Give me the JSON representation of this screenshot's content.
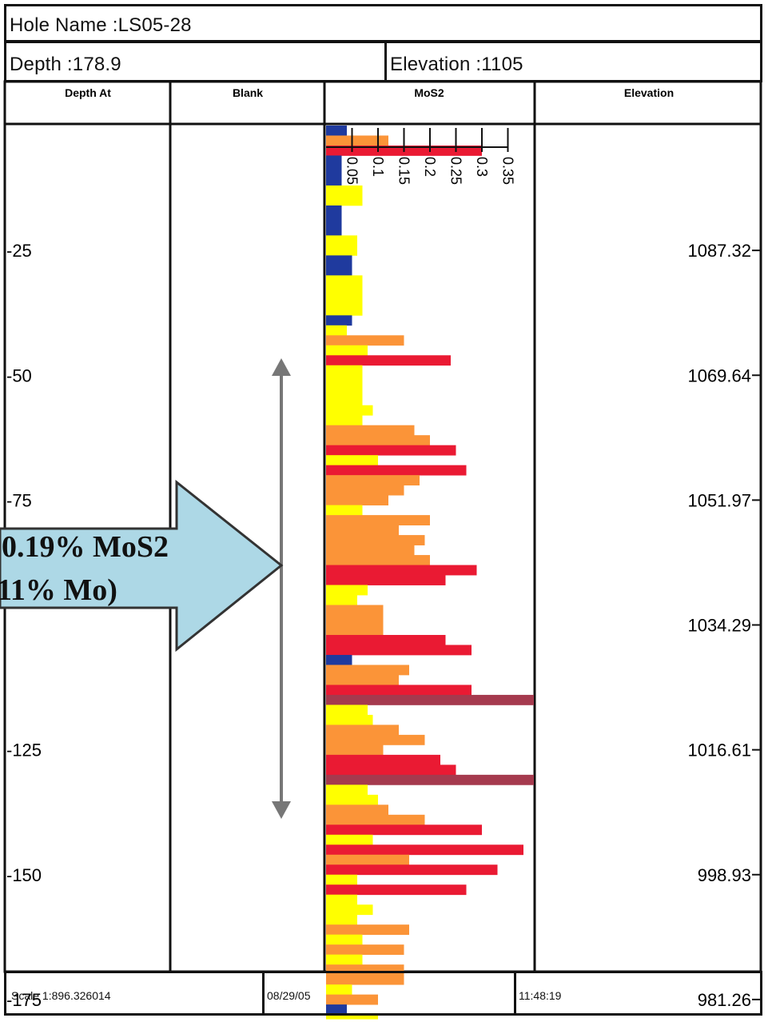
{
  "hole_name": "Hole Name :LS05-28",
  "depth": "Depth :178.9",
  "elevation": "Elevation :1105",
  "columns": [
    "Depth At",
    "Blank",
    "MoS2",
    "Elevation"
  ],
  "footer": {
    "scale": "Scale 1:896.326014",
    "date": "08/29/05",
    "time": "11:48:19"
  },
  "callout": {
    "line1": "0.19% MoS2",
    "line2": "11% Mo)"
  },
  "colors": {
    "blue": "#1f3a9e",
    "yellow": "#ffff00",
    "orange": "#fb9438",
    "red": "#ea1a33",
    "maroon": "#a53a4e",
    "callout_fill": "#add8e6",
    "arrow_grey": "#777777"
  },
  "chart_data": {
    "type": "bar",
    "orientation": "horizontal",
    "title": "MoS2",
    "ylabel": "Depth At",
    "ylim": [
      0,
      178.9
    ],
    "xlim": [
      0,
      0.4
    ],
    "x_ticks": [
      "0.05",
      "0.1",
      "0.15",
      "0.2",
      "0.25",
      "0.3",
      "0.35"
    ],
    "x_tick_values": [
      0.05,
      0.1,
      0.15,
      0.2,
      0.25,
      0.3,
      0.35
    ],
    "depth_ticks": [
      "-25",
      "-50",
      "-75",
      "-125",
      "-150",
      "-175"
    ],
    "depth_tick_values": [
      25,
      50,
      75,
      125,
      150,
      175
    ],
    "elevation_ticks": [
      "1087.32",
      "1069.64",
      "1051.97",
      "1034.29",
      "1016.61",
      "998.93",
      "981.26"
    ],
    "elevation_tick_depths": [
      25,
      50,
      75,
      100,
      125,
      150,
      175
    ],
    "intervals": [
      {
        "from": 0,
        "to": 2,
        "value": 0.04,
        "class": "blue"
      },
      {
        "from": 2,
        "to": 4,
        "value": 0.12,
        "class": "orange"
      },
      {
        "from": 4,
        "to": 6,
        "value": 0.3,
        "class": "red"
      },
      {
        "from": 6,
        "to": 12,
        "value": 0.03,
        "class": "blue"
      },
      {
        "from": 12,
        "to": 16,
        "value": 0.07,
        "class": "yellow"
      },
      {
        "from": 16,
        "to": 22,
        "value": 0.03,
        "class": "blue"
      },
      {
        "from": 22,
        "to": 26,
        "value": 0.06,
        "class": "yellow"
      },
      {
        "from": 26,
        "to": 30,
        "value": 0.05,
        "class": "blue"
      },
      {
        "from": 30,
        "to": 38,
        "value": 0.07,
        "class": "yellow"
      },
      {
        "from": 38,
        "to": 40,
        "value": 0.05,
        "class": "blue"
      },
      {
        "from": 40,
        "to": 42,
        "value": 0.04,
        "class": "yellow"
      },
      {
        "from": 42,
        "to": 44,
        "value": 0.15,
        "class": "orange"
      },
      {
        "from": 44,
        "to": 46,
        "value": 0.08,
        "class": "yellow"
      },
      {
        "from": 46,
        "to": 48,
        "value": 0.24,
        "class": "red"
      },
      {
        "from": 48,
        "to": 56,
        "value": 0.07,
        "class": "yellow"
      },
      {
        "from": 56,
        "to": 58,
        "value": 0.09,
        "class": "yellow"
      },
      {
        "from": 58,
        "to": 60,
        "value": 0.07,
        "class": "yellow"
      },
      {
        "from": 60,
        "to": 62,
        "value": 0.17,
        "class": "orange"
      },
      {
        "from": 62,
        "to": 64,
        "value": 0.2,
        "class": "orange"
      },
      {
        "from": 64,
        "to": 66,
        "value": 0.25,
        "class": "red"
      },
      {
        "from": 66,
        "to": 68,
        "value": 0.1,
        "class": "yellow"
      },
      {
        "from": 68,
        "to": 70,
        "value": 0.27,
        "class": "red"
      },
      {
        "from": 70,
        "to": 72,
        "value": 0.18,
        "class": "orange"
      },
      {
        "from": 72,
        "to": 74,
        "value": 0.15,
        "class": "orange"
      },
      {
        "from": 74,
        "to": 76,
        "value": 0.12,
        "class": "orange"
      },
      {
        "from": 76,
        "to": 78,
        "value": 0.07,
        "class": "yellow"
      },
      {
        "from": 78,
        "to": 80,
        "value": 0.2,
        "class": "orange"
      },
      {
        "from": 80,
        "to": 82,
        "value": 0.14,
        "class": "orange"
      },
      {
        "from": 82,
        "to": 84,
        "value": 0.19,
        "class": "orange"
      },
      {
        "from": 84,
        "to": 86,
        "value": 0.17,
        "class": "orange"
      },
      {
        "from": 86,
        "to": 88,
        "value": 0.2,
        "class": "orange"
      },
      {
        "from": 88,
        "to": 90,
        "value": 0.29,
        "class": "red"
      },
      {
        "from": 90,
        "to": 92,
        "value": 0.23,
        "class": "red"
      },
      {
        "from": 92,
        "to": 94,
        "value": 0.08,
        "class": "yellow"
      },
      {
        "from": 94,
        "to": 96,
        "value": 0.06,
        "class": "yellow"
      },
      {
        "from": 96,
        "to": 102,
        "value": 0.11,
        "class": "orange"
      },
      {
        "from": 102,
        "to": 104,
        "value": 0.23,
        "class": "red"
      },
      {
        "from": 104,
        "to": 106,
        "value": 0.28,
        "class": "red"
      },
      {
        "from": 106,
        "to": 108,
        "value": 0.05,
        "class": "blue"
      },
      {
        "from": 108,
        "to": 110,
        "value": 0.16,
        "class": "orange"
      },
      {
        "from": 110,
        "to": 112,
        "value": 0.14,
        "class": "orange"
      },
      {
        "from": 112,
        "to": 114,
        "value": 0.28,
        "class": "red"
      },
      {
        "from": 114,
        "to": 116,
        "value": 0.4,
        "class": "maroon"
      },
      {
        "from": 116,
        "to": 118,
        "value": 0.08,
        "class": "yellow"
      },
      {
        "from": 118,
        "to": 120,
        "value": 0.09,
        "class": "yellow"
      },
      {
        "from": 120,
        "to": 122,
        "value": 0.14,
        "class": "orange"
      },
      {
        "from": 122,
        "to": 124,
        "value": 0.19,
        "class": "orange"
      },
      {
        "from": 124,
        "to": 126,
        "value": 0.11,
        "class": "orange"
      },
      {
        "from": 126,
        "to": 128,
        "value": 0.22,
        "class": "red"
      },
      {
        "from": 128,
        "to": 130,
        "value": 0.25,
        "class": "red"
      },
      {
        "from": 130,
        "to": 132,
        "value": 0.4,
        "class": "maroon"
      },
      {
        "from": 132,
        "to": 134,
        "value": 0.08,
        "class": "yellow"
      },
      {
        "from": 134,
        "to": 136,
        "value": 0.1,
        "class": "yellow"
      },
      {
        "from": 136,
        "to": 138,
        "value": 0.12,
        "class": "orange"
      },
      {
        "from": 138,
        "to": 140,
        "value": 0.19,
        "class": "orange"
      },
      {
        "from": 140,
        "to": 142,
        "value": 0.3,
        "class": "red"
      },
      {
        "from": 142,
        "to": 144,
        "value": 0.09,
        "class": "yellow"
      },
      {
        "from": 144,
        "to": 146,
        "value": 0.38,
        "class": "red"
      },
      {
        "from": 146,
        "to": 148,
        "value": 0.16,
        "class": "orange"
      },
      {
        "from": 148,
        "to": 150,
        "value": 0.33,
        "class": "red"
      },
      {
        "from": 150,
        "to": 152,
        "value": 0.06,
        "class": "yellow"
      },
      {
        "from": 152,
        "to": 154,
        "value": 0.27,
        "class": "red"
      },
      {
        "from": 154,
        "to": 156,
        "value": 0.06,
        "class": "yellow"
      },
      {
        "from": 156,
        "to": 158,
        "value": 0.09,
        "class": "yellow"
      },
      {
        "from": 158,
        "to": 160,
        "value": 0.06,
        "class": "yellow"
      },
      {
        "from": 160,
        "to": 162,
        "value": 0.16,
        "class": "orange"
      },
      {
        "from": 162,
        "to": 164,
        "value": 0.07,
        "class": "yellow"
      },
      {
        "from": 164,
        "to": 166,
        "value": 0.15,
        "class": "orange"
      },
      {
        "from": 166,
        "to": 168,
        "value": 0.07,
        "class": "yellow"
      },
      {
        "from": 168,
        "to": 170,
        "value": 0.15,
        "class": "orange"
      },
      {
        "from": 170,
        "to": 172,
        "value": 0.15,
        "class": "orange"
      },
      {
        "from": 172,
        "to": 174,
        "value": 0.05,
        "class": "yellow"
      },
      {
        "from": 174,
        "to": 176,
        "value": 0.1,
        "class": "orange"
      },
      {
        "from": 176,
        "to": 178,
        "value": 0.04,
        "class": "blue"
      },
      {
        "from": 178,
        "to": 178.9,
        "value": 0.1,
        "class": "yellow"
      }
    ]
  }
}
